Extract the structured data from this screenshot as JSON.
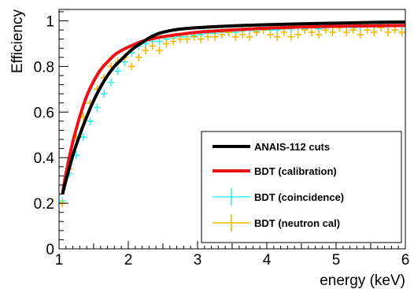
{
  "chart_data": {
    "type": "line",
    "xlabel": "energy (keV)",
    "ylabel": "Efficiency",
    "xlim": [
      1,
      6
    ],
    "ylim": [
      0,
      1.05
    ],
    "xticks": [
      1,
      2,
      3,
      4,
      5,
      6
    ],
    "xtick_labels": [
      "1",
      "2",
      "3",
      "4",
      "5",
      "6"
    ],
    "yticks": [
      0,
      0.2,
      0.4,
      0.6,
      0.8,
      1
    ],
    "ytick_labels": [
      "0",
      "0.2",
      "0.4",
      "0.6",
      "0.8",
      "1"
    ],
    "grid": false,
    "legend_position": "bottom-right",
    "series": [
      {
        "name": "ANAIS-112 cuts",
        "style": "line",
        "color": "#000000",
        "x": [
          1.05,
          1.1,
          1.2,
          1.3,
          1.4,
          1.5,
          1.6,
          1.7,
          1.8,
          1.9,
          2.0,
          2.1,
          2.2,
          2.3,
          2.4,
          2.5,
          2.7,
          3.0,
          3.5,
          4.0,
          4.5,
          5.0,
          5.5,
          6.0
        ],
        "y": [
          0.24,
          0.3,
          0.41,
          0.5,
          0.58,
          0.65,
          0.71,
          0.76,
          0.8,
          0.83,
          0.86,
          0.885,
          0.905,
          0.925,
          0.94,
          0.95,
          0.962,
          0.97,
          0.978,
          0.983,
          0.987,
          0.99,
          0.993,
          0.995
        ]
      },
      {
        "name": "BDT (calibration)",
        "style": "line",
        "color": "#ee1111",
        "x": [
          1.05,
          1.1,
          1.2,
          1.3,
          1.4,
          1.5,
          1.6,
          1.7,
          1.8,
          1.9,
          2.0,
          2.2,
          2.4,
          2.6,
          2.8,
          3.0,
          3.5,
          4.0,
          4.5,
          5.0,
          5.5,
          6.0
        ],
        "y": [
          0.24,
          0.33,
          0.47,
          0.58,
          0.67,
          0.735,
          0.785,
          0.82,
          0.85,
          0.87,
          0.885,
          0.91,
          0.925,
          0.935,
          0.943,
          0.95,
          0.96,
          0.968,
          0.973,
          0.976,
          0.978,
          0.98
        ]
      },
      {
        "name": "BDT (coincidence)",
        "style": "markers",
        "color": "#33eeee",
        "x": [
          1.05,
          1.15,
          1.25,
          1.35,
          1.45,
          1.55,
          1.65,
          1.75,
          1.85,
          1.95,
          2.05,
          2.15,
          2.25,
          2.35,
          2.45,
          2.55,
          2.65,
          2.75,
          2.85,
          2.95,
          3.05,
          3.15,
          3.25,
          3.35,
          3.45,
          3.55,
          3.65,
          3.75,
          3.85,
          3.95,
          4.05,
          4.15,
          4.25,
          4.35,
          4.45,
          4.55,
          4.65,
          4.75,
          4.85,
          4.95,
          5.05,
          5.15,
          5.25,
          5.35,
          5.45,
          5.55,
          5.65,
          5.75,
          5.85,
          5.95
        ],
        "y": [
          0.21,
          0.33,
          0.41,
          0.49,
          0.56,
          0.62,
          0.68,
          0.73,
          0.78,
          0.82,
          0.86,
          0.89,
          0.9,
          0.91,
          0.91,
          0.92,
          0.925,
          0.93,
          0.93,
          0.935,
          0.94,
          0.945,
          0.945,
          0.95,
          0.95,
          0.95,
          0.955,
          0.96,
          0.955,
          0.96,
          0.96,
          0.96,
          0.965,
          0.965,
          0.97,
          0.965,
          0.97,
          0.965,
          0.97,
          0.975,
          0.97,
          0.975,
          0.97,
          0.975,
          0.98,
          0.975,
          0.985,
          0.975,
          0.98,
          0.975
        ]
      },
      {
        "name": "BDT (neutron cal)",
        "style": "markers",
        "color": "#f5b800",
        "x": [
          1.05,
          1.15,
          1.25,
          1.35,
          1.45,
          1.55,
          1.65,
          1.75,
          1.85,
          1.95,
          2.05,
          2.15,
          2.25,
          2.35,
          2.45,
          2.55,
          2.65,
          2.75,
          2.85,
          2.95,
          3.05,
          3.15,
          3.25,
          3.35,
          3.45,
          3.55,
          3.65,
          3.75,
          3.85,
          3.95,
          4.05,
          4.15,
          4.25,
          4.35,
          4.45,
          4.55,
          4.65,
          4.75,
          4.85,
          4.95,
          5.05,
          5.15,
          5.25,
          5.35,
          5.45,
          5.55,
          5.65,
          5.75,
          5.85,
          5.95
        ],
        "y": [
          0.2,
          0.35,
          0.49,
          0.58,
          0.64,
          0.7,
          0.75,
          0.8,
          0.82,
          0.84,
          0.8,
          0.84,
          0.87,
          0.89,
          0.87,
          0.9,
          0.91,
          0.92,
          0.92,
          0.93,
          0.92,
          0.93,
          0.93,
          0.94,
          0.95,
          0.93,
          0.94,
          0.93,
          0.95,
          0.96,
          0.94,
          0.93,
          0.95,
          0.93,
          0.94,
          0.96,
          0.95,
          0.94,
          0.96,
          0.95,
          0.97,
          0.95,
          0.96,
          0.94,
          0.96,
          0.95,
          0.97,
          0.95,
          0.96,
          0.95
        ]
      }
    ]
  }
}
